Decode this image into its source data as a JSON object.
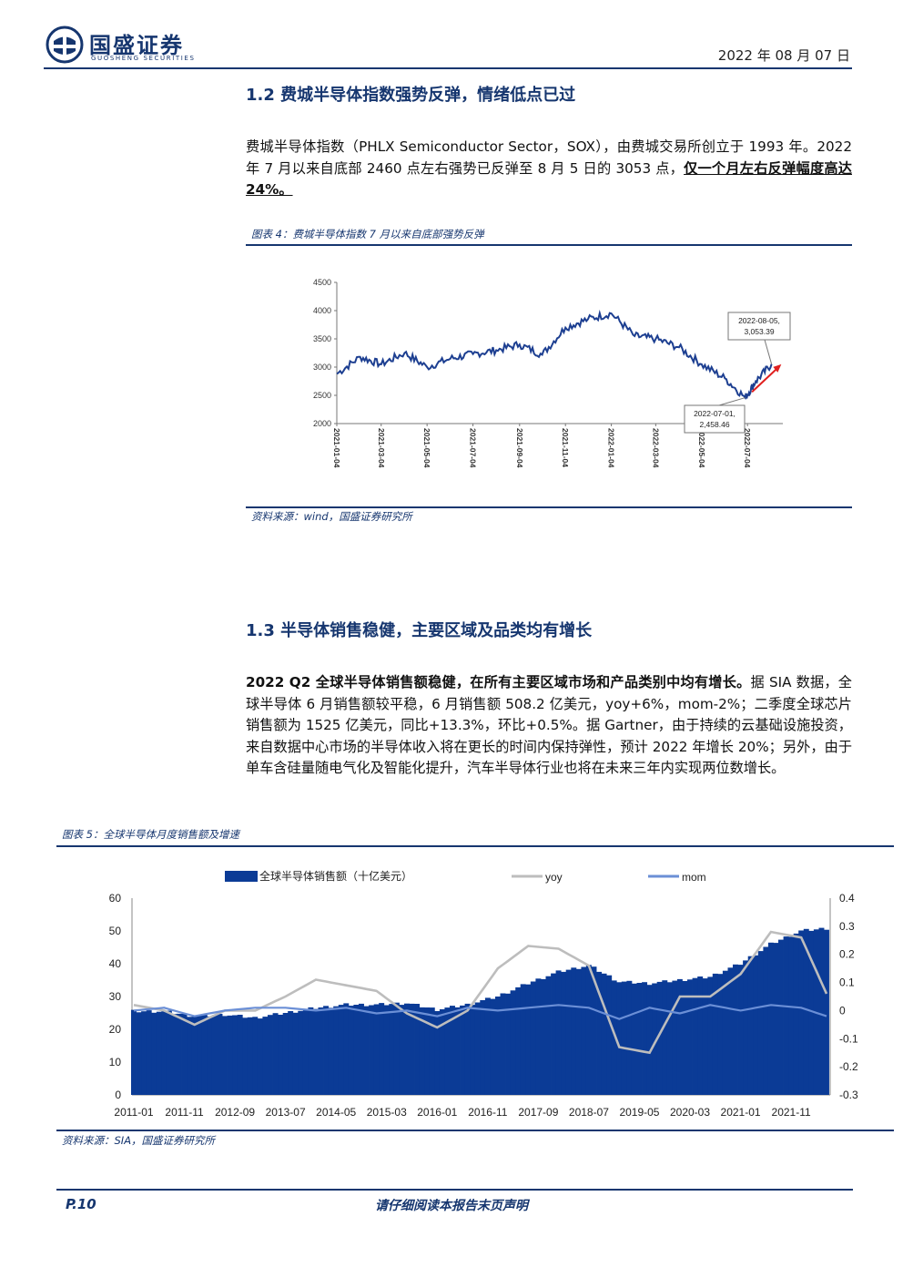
{
  "header": {
    "company_name": "国盛证券",
    "company_en": "GUOSHENG SECURITIES",
    "date": "2022 年 08 月 07 日"
  },
  "section_1_2": {
    "title": "1.2 费城半导体指数强势反弹，情绪低点已过",
    "para_normal": "费城半导体指数（PHLX Semiconductor Sector，SOX），由费城交易所创立于 1993 年。2022 年 7 月以来自底部 2460 点左右强势已反弹至 8 月 5 日的 3053 点，",
    "para_emph_a": "仅一个月左右反弹幅度高达",
    "para_emph_b": "24%。",
    "figure_caption": "图表 4：费城半导体指数 7 月以来自底部强势反弹",
    "source": "资料来源：wind，国盛证券研究所"
  },
  "section_1_3": {
    "title": "1.3 半导体销售稳健，主要区域及品类均有增长",
    "para_bold": "2022 Q2 全球半导体销售额稳健，在所有主要区域市场和产品类别中均有增长。",
    "para_rest": "据 SIA 数据，全球半导体 6 月销售额较平稳，6 月销售额 508.2 亿美元，yoy+6%，mom-2%；二季度全球芯片销售额为 1525 亿美元，同比+13.3%，环比+0.5%。据 Gartner，由于持续的云基础设施投资，来自数据中心市场的半导体收入将在更长的时间内保持弹性，预计 2022 年增长 20%；另外，由于单车含硅量随电气化及智能化提升，汽车半导体行业也将在未来三年内实现两位数增长。",
    "figure_caption": "图表 5：全球半导体月度销售额及增速",
    "source": "资料来源：SIA，国盛证券研究所"
  },
  "footer": {
    "page": "P.10",
    "note": "请仔细阅读本报告末页声明"
  },
  "colors": {
    "brand": "#16366f",
    "sox_line": "#1d3f91",
    "sales_fill": "#0b3b96",
    "yoy_line": "#bdbdbd",
    "mom_line": "#6b8fd6",
    "arrow": "#e0201f"
  },
  "chart_data": [
    {
      "type": "line",
      "title": "",
      "ylim": [
        2000,
        4500
      ],
      "yticks": [
        "4500",
        "4000",
        "3500",
        "3000",
        "2500",
        "2000"
      ],
      "x_tick_labels": [
        "2021-01-04",
        "2021-03-04",
        "2021-05-04",
        "2021-07-04",
        "2021-09-04",
        "2021-11-04",
        "2022-01-04",
        "2022-03-04",
        "2022-05-04",
        "2022-07-04"
      ],
      "series": [
        {
          "x": [
            "2021-01-04",
            "2021-02-04",
            "2021-03-04",
            "2021-04-04",
            "2021-05-04",
            "2021-06-04",
            "2021-07-04",
            "2021-08-04",
            "2021-09-04",
            "2021-10-04",
            "2021-11-04",
            "2021-12-04",
            "2022-01-04",
            "2022-02-04",
            "2022-03-04",
            "2022-04-04",
            "2022-05-04",
            "2022-06-04",
            "2022-07-01",
            "2022-07-15",
            "2022-08-05"
          ],
          "values": [
            2880,
            3180,
            3050,
            3250,
            3000,
            3150,
            3230,
            3300,
            3400,
            3220,
            3700,
            3850,
            3950,
            3550,
            3500,
            3350,
            3050,
            2800,
            2458.46,
            2750,
            3053.39
          ]
        }
      ],
      "annotations": [
        {
          "label_line1": "2022-08-05,",
          "label_line2": "3,053.39"
        },
        {
          "label_line1": "2022-07-01,",
          "label_line2": "2,458.46"
        }
      ],
      "grid": false,
      "legend": "none"
    },
    {
      "type": "bar",
      "title": "",
      "x_tick_labels": [
        "2011-01",
        "2011-11",
        "2012-09",
        "2013-07",
        "2014-05",
        "2015-03",
        "2016-01",
        "2016-11",
        "2017-09",
        "2018-07",
        "2019-05",
        "2020-03",
        "2021-01",
        "2021-11"
      ],
      "x": [
        "2011-01",
        "2011-07",
        "2012-01",
        "2012-07",
        "2013-01",
        "2013-07",
        "2014-01",
        "2014-07",
        "2015-01",
        "2015-07",
        "2016-01",
        "2016-07",
        "2017-01",
        "2017-07",
        "2018-01",
        "2018-07",
        "2019-01",
        "2019-07",
        "2020-01",
        "2020-07",
        "2021-01",
        "2021-07",
        "2022-01",
        "2022-06"
      ],
      "ylim_left": [
        0,
        60
      ],
      "yticks_left": [
        "60",
        "50",
        "40",
        "30",
        "20",
        "10",
        "0"
      ],
      "ylim_right": [
        -0.3,
        0.4
      ],
      "yticks_right": [
        "0.4",
        "0.3",
        "0.2",
        "0.1",
        "0",
        "-0.1",
        "-0.2",
        "-0.3"
      ],
      "series": [
        {
          "name": "全球半导体销售额（十亿美元）",
          "axis": "left",
          "kind": "bar",
          "values": [
            25.5,
            25.5,
            24.0,
            24.5,
            23.5,
            25.0,
            26.5,
            27.5,
            27.5,
            28.0,
            26.0,
            27.5,
            30.0,
            34.0,
            37.5,
            39.5,
            34.5,
            34.0,
            35.0,
            36.0,
            40.0,
            46.0,
            50.0,
            50.8
          ]
        },
        {
          "name": "yoy",
          "axis": "right",
          "kind": "line",
          "values": [
            0.02,
            0.0,
            -0.05,
            0.0,
            0.0,
            0.05,
            0.11,
            0.09,
            0.07,
            -0.01,
            -0.06,
            0.0,
            0.15,
            0.23,
            0.22,
            0.16,
            -0.13,
            -0.15,
            0.05,
            0.05,
            0.13,
            0.28,
            0.26,
            0.06
          ]
        },
        {
          "name": "mom",
          "axis": "right",
          "kind": "line",
          "values": [
            0.0,
            0.01,
            -0.02,
            0.0,
            0.01,
            0.01,
            0.0,
            0.01,
            -0.01,
            0.0,
            -0.02,
            0.01,
            0.0,
            0.01,
            0.02,
            0.01,
            -0.03,
            0.01,
            -0.01,
            0.02,
            0.0,
            0.02,
            0.01,
            -0.02
          ]
        }
      ],
      "legend": "top"
    }
  ]
}
